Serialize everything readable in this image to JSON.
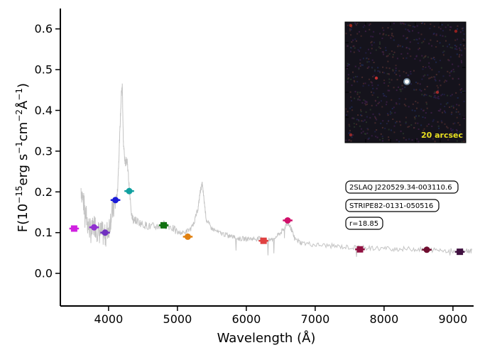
{
  "chart_data": {
    "type": "line",
    "xlabel": "Wavelength (Å)",
    "ylabel_parts": {
      "prefix": "F(10",
      "exp1": "−15",
      "mid1": "erg s",
      "exp2": "−1",
      "mid2": "cm",
      "exp3": "−2",
      "mid3": "Å",
      "exp4": "−1",
      "suffix": ")"
    },
    "xlim": [
      3300,
      9300
    ],
    "ylim": [
      -0.08,
      0.65
    ],
    "xticks": [
      4000,
      5000,
      6000,
      7000,
      8000,
      9000
    ],
    "yticks": [
      0.0,
      0.1,
      0.2,
      0.3,
      0.4,
      0.5,
      0.6
    ],
    "xtick_labels": [
      "4000",
      "5000",
      "6000",
      "7000",
      "8000",
      "9000"
    ],
    "ytick_labels": [
      "0.0",
      "0.1",
      "0.2",
      "0.3",
      "0.4",
      "0.5",
      "0.6"
    ],
    "spectrum": {
      "color": "#c4c4c4",
      "x": [
        3600,
        3650,
        3700,
        3750,
        3800,
        3850,
        3900,
        3950,
        4000,
        4050,
        4100,
        4130,
        4160,
        4185,
        4200,
        4215,
        4240,
        4270,
        4300,
        4330,
        4360,
        4400,
        4500,
        4600,
        4700,
        4800,
        4900,
        5000,
        5100,
        5200,
        5250,
        5300,
        5330,
        5360,
        5380,
        5420,
        5500,
        5600,
        5700,
        5800,
        5900,
        6000,
        6100,
        6200,
        6300,
        6400,
        6500,
        6550,
        6600,
        6650,
        6700,
        6800,
        7000,
        7200,
        7400,
        7600,
        7800,
        8000,
        8200,
        8400,
        8600,
        8800,
        9000,
        9200,
        9280
      ],
      "y": [
        0.21,
        0.16,
        0.12,
        0.1,
        0.12,
        0.1,
        0.1,
        0.09,
        0.11,
        0.15,
        0.17,
        0.2,
        0.33,
        0.44,
        0.46,
        0.32,
        0.27,
        0.28,
        0.21,
        0.15,
        0.13,
        0.13,
        0.12,
        0.115,
        0.115,
        0.12,
        0.115,
        0.1,
        0.1,
        0.11,
        0.13,
        0.16,
        0.2,
        0.22,
        0.19,
        0.13,
        0.11,
        0.1,
        0.095,
        0.09,
        0.085,
        0.085,
        0.085,
        0.085,
        0.08,
        0.085,
        0.1,
        0.11,
        0.125,
        0.11,
        0.085,
        0.075,
        0.07,
        0.068,
        0.065,
        0.063,
        0.062,
        0.061,
        0.06,
        0.06,
        0.058,
        0.057,
        0.056,
        0.055,
        0.055
      ]
    },
    "photometry": [
      {
        "x": 3500,
        "y": 0.11,
        "xerr": 70,
        "color": "#d020e0",
        "marker": "square"
      },
      {
        "x": 3790,
        "y": 0.113,
        "xerr": 70,
        "color": "#9030d0",
        "marker": "circle"
      },
      {
        "x": 3950,
        "y": 0.1,
        "xerr": 70,
        "color": "#7030c0",
        "marker": "circle"
      },
      {
        "x": 4100,
        "y": 0.18,
        "xerr": 70,
        "color": "#1a1ad8",
        "marker": "circle"
      },
      {
        "x": 4300,
        "y": 0.202,
        "xerr": 70,
        "color": "#10a0a0",
        "marker": "circle"
      },
      {
        "x": 4800,
        "y": 0.118,
        "xerr": 70,
        "color": "#107010",
        "marker": "square"
      },
      {
        "x": 5150,
        "y": 0.09,
        "xerr": 70,
        "color": "#e08010",
        "marker": "circle"
      },
      {
        "x": 6250,
        "y": 0.08,
        "xerr": 70,
        "color": "#e04040",
        "marker": "square"
      },
      {
        "x": 6600,
        "y": 0.13,
        "xerr": 70,
        "color": "#d0106a",
        "marker": "circle"
      },
      {
        "x": 7650,
        "y": 0.059,
        "xerr": 70,
        "color": "#901040",
        "marker": "square"
      },
      {
        "x": 8620,
        "y": 0.058,
        "xerr": 70,
        "color": "#700e30",
        "marker": "circle"
      },
      {
        "x": 9100,
        "y": 0.053,
        "xerr": 70,
        "color": "#401040",
        "marker": "square"
      }
    ],
    "tags": [
      "2SLAQ J220529.34-003110.6",
      "STRIPE82-0131-050516",
      "r=18.85"
    ],
    "inset": {
      "scale_label": "20 arcsec",
      "source_color": "#ffffff"
    }
  }
}
